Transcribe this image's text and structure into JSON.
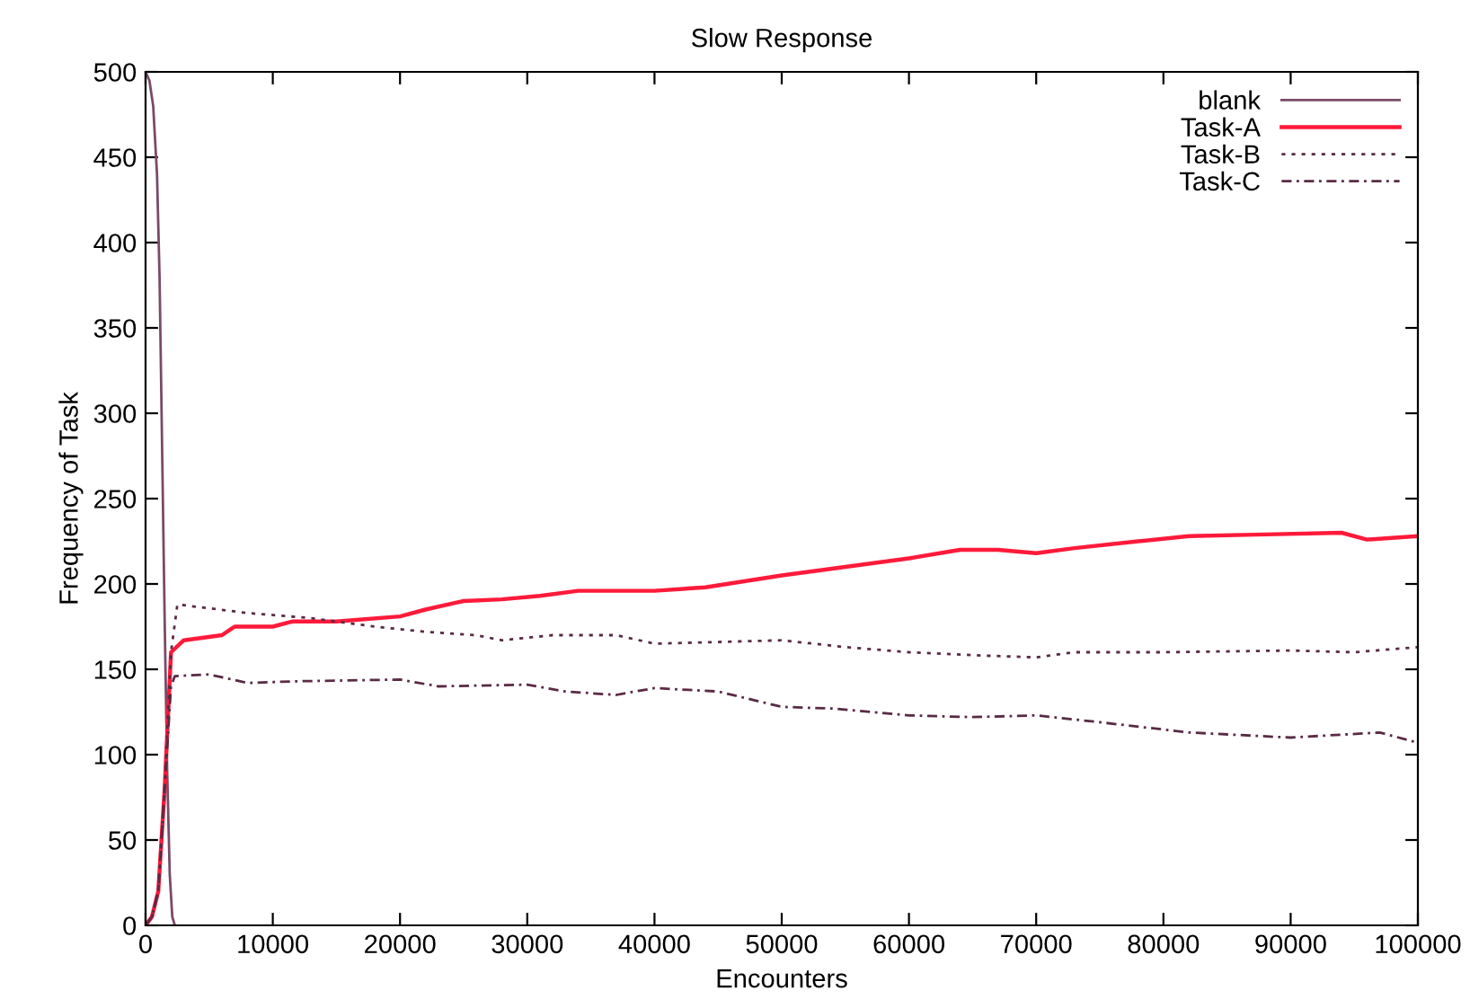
{
  "chart_data": {
    "type": "line",
    "title": "Slow Response",
    "xlabel": "Encounters",
    "ylabel": "Frequency of Task",
    "xlim": [
      0,
      100000
    ],
    "ylim": [
      0,
      500
    ],
    "xticks": [
      0,
      10000,
      20000,
      30000,
      40000,
      50000,
      60000,
      70000,
      80000,
      90000,
      100000
    ],
    "yticks": [
      0,
      50,
      100,
      150,
      200,
      250,
      300,
      350,
      400,
      450,
      500
    ],
    "grid": false,
    "legend": "top right",
    "marker": "none",
    "series": [
      {
        "name": "blank",
        "color": "#7a4a66",
        "line_style": "solid",
        "x": [
          0,
          300,
          600,
          900,
          1100,
          1300,
          1500,
          1700,
          1900,
          2100,
          2300
        ],
        "values": [
          500,
          495,
          480,
          440,
          380,
          280,
          180,
          90,
          30,
          5,
          0
        ]
      },
      {
        "name": "Task-A",
        "color": "#ff1a3a",
        "line_style": "solid",
        "x": [
          0,
          500,
          1000,
          1500,
          2000,
          3000,
          6000,
          7000,
          10000,
          11500,
          15000,
          20000,
          22000,
          25000,
          28000,
          31000,
          34000,
          40000,
          44000,
          50000,
          55000,
          60000,
          64000,
          67000,
          70000,
          73000,
          78000,
          82000,
          88000,
          94000,
          96000,
          100000
        ],
        "values": [
          0,
          5,
          20,
          80,
          160,
          167,
          170,
          175,
          175,
          178,
          178,
          181,
          185,
          190,
          191,
          193,
          196,
          196,
          198,
          205,
          210,
          215,
          220,
          220,
          218,
          221,
          225,
          228,
          229,
          230,
          226,
          228
        ]
      },
      {
        "name": "Task-B",
        "color": "#5a2a45",
        "line_style": "dotted",
        "x": [
          0,
          500,
          1000,
          1500,
          2000,
          2500,
          8000,
          13000,
          18000,
          22000,
          26000,
          28000,
          32000,
          37000,
          40000,
          45000,
          50000,
          55000,
          60000,
          66000,
          70000,
          73000,
          80000,
          90000,
          95000,
          100000
        ],
        "values": [
          0,
          5,
          20,
          80,
          160,
          188,
          183,
          180,
          175,
          172,
          170,
          167,
          170,
          170,
          165,
          166,
          167,
          163,
          160,
          158,
          157,
          160,
          160,
          161,
          160,
          163
        ]
      },
      {
        "name": "Task-C",
        "color": "#5a2a45",
        "line_style": "dashdot",
        "x": [
          0,
          500,
          1000,
          1500,
          2000,
          2300,
          5000,
          8000,
          12000,
          20000,
          23000,
          30000,
          33000,
          37000,
          40000,
          45000,
          50000,
          54000,
          60000,
          65000,
          70000,
          75000,
          82000,
          90000,
          97000,
          100000
        ],
        "values": [
          0,
          5,
          20,
          80,
          140,
          146,
          147,
          142,
          143,
          144,
          140,
          141,
          137,
          135,
          139,
          137,
          128,
          127,
          123,
          122,
          123,
          119,
          113,
          110,
          113,
          107
        ]
      }
    ]
  }
}
